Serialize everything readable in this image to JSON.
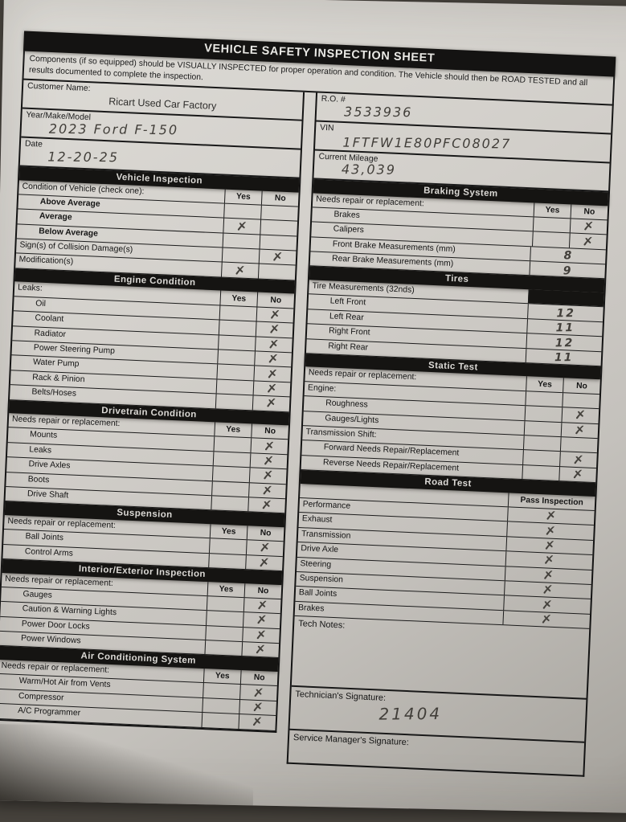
{
  "colors": {
    "ink": "#1a1a1a",
    "paper": "#d2cfca",
    "handwriting": "#45423e",
    "background": "#46423c"
  },
  "header": {
    "title": "VEHICLE SAFETY INSPECTION SHEET",
    "note": "Components (if so equipped) should be VISUALLY INSPECTED for proper operation and condition. The Vehicle should then be ROAD TESTED and all results documented to complete the inspection."
  },
  "fields": {
    "left": [
      {
        "label": "Customer Name:",
        "value": "Ricart Used Car Factory"
      },
      {
        "label": "Year/Make/Model",
        "value": "2023  Ford  F-150"
      },
      {
        "label": "Date",
        "value": "12-20-25"
      }
    ],
    "right": [
      {
        "label": "R.O. #",
        "value": "3533936"
      },
      {
        "label": "VIN",
        "value": "1FTFW1E80PFC08027"
      },
      {
        "label": "Current Mileage",
        "value": "43,039"
      }
    ]
  },
  "left_column": {
    "sections": [
      {
        "title": "Vehicle Inspection",
        "subheader": "Condition of Vehicle (check one):",
        "cols": [
          "Yes",
          "No"
        ],
        "rows": [
          {
            "label": "Above Average",
            "indent": 1,
            "bold": true,
            "cells": [
              "",
              ""
            ]
          },
          {
            "label": "Average",
            "indent": 1,
            "bold": true,
            "cells": [
              "✗",
              ""
            ]
          },
          {
            "label": "Below Average",
            "indent": 1,
            "bold": true,
            "cells": [
              "",
              ""
            ]
          },
          {
            "label": "Sign(s) of Collision Damage(s)",
            "cells": [
              "",
              "✗"
            ]
          },
          {
            "label": "Modification(s)",
            "cells": [
              "✗",
              ""
            ]
          }
        ]
      },
      {
        "title": "Engine Condition",
        "subheader": "Leaks:",
        "cols": [
          "Yes",
          "No"
        ],
        "rows": [
          {
            "label": "Oil",
            "indent": 1,
            "cells": [
              "",
              "✗"
            ]
          },
          {
            "label": "Coolant",
            "indent": 1,
            "cells": [
              "",
              "✗"
            ]
          },
          {
            "label": "Radiator",
            "indent": 1,
            "cells": [
              "",
              "✗"
            ]
          },
          {
            "label": "Power Steering Pump",
            "indent": 1,
            "cells": [
              "",
              "✗"
            ]
          },
          {
            "label": "Water Pump",
            "indent": 1,
            "cells": [
              "",
              "✗"
            ]
          },
          {
            "label": "Rack & Pinion",
            "indent": 1,
            "cells": [
              "",
              "✗"
            ]
          },
          {
            "label": "Belts/Hoses",
            "indent": 1,
            "cells": [
              "",
              "✗"
            ]
          }
        ]
      },
      {
        "title": "Drivetrain Condition",
        "subheader": "Needs repair or replacement:",
        "cols": [
          "Yes",
          "No"
        ],
        "rows": [
          {
            "label": "Mounts",
            "indent": 1,
            "cells": [
              "",
              "✗"
            ]
          },
          {
            "label": "Leaks",
            "indent": 1,
            "cells": [
              "",
              "✗"
            ]
          },
          {
            "label": "Drive Axles",
            "indent": 1,
            "cells": [
              "",
              "✗"
            ]
          },
          {
            "label": "Boots",
            "indent": 1,
            "cells": [
              "",
              "✗"
            ]
          },
          {
            "label": "Drive Shaft",
            "indent": 1,
            "cells": [
              "",
              "✗"
            ]
          }
        ]
      },
      {
        "title": "Suspension",
        "subheader": "Needs repair or replacement:",
        "cols": [
          "Yes",
          "No"
        ],
        "rows": [
          {
            "label": "Ball Joints",
            "indent": 1,
            "cells": [
              "",
              "✗"
            ]
          },
          {
            "label": "Control Arms",
            "indent": 1,
            "cells": [
              "",
              "✗"
            ]
          }
        ]
      },
      {
        "title": "Interior/Exterior Inspection",
        "subheader": "Needs repair or replacement:",
        "cols": [
          "Yes",
          "No"
        ],
        "rows": [
          {
            "label": "Gauges",
            "indent": 1,
            "cells": [
              "",
              "✗"
            ]
          },
          {
            "label": "Caution & Warning Lights",
            "indent": 1,
            "cells": [
              "",
              "✗"
            ]
          },
          {
            "label": "Power Door Locks",
            "indent": 1,
            "cells": [
              "",
              "✗"
            ]
          },
          {
            "label": "Power Windows",
            "indent": 1,
            "cells": [
              "",
              "✗"
            ]
          }
        ]
      },
      {
        "title": "Air Conditioning System",
        "subheader": "Needs repair or replacement:",
        "cols": [
          "Yes",
          "No"
        ],
        "rows": [
          {
            "label": "Warm/Hot Air from Vents",
            "indent": 1,
            "cells": [
              "",
              "✗"
            ]
          },
          {
            "label": "Compressor",
            "indent": 1,
            "cells": [
              "",
              "✗"
            ]
          },
          {
            "label": "A/C Programmer",
            "indent": 1,
            "cells": [
              "",
              "✗"
            ]
          }
        ]
      }
    ]
  },
  "right_column": {
    "sections": [
      {
        "title": "Braking System",
        "subheader": "Needs repair or replacement:",
        "cols": [
          "Yes",
          "No"
        ],
        "rows": [
          {
            "label": "Brakes",
            "indent": 1,
            "cells": [
              "",
              "✗"
            ]
          },
          {
            "label": "Calipers",
            "indent": 1,
            "cells": [
              "",
              "✗"
            ]
          },
          {
            "label": "Front Brake Measurements (mm)",
            "indent": 1,
            "span": 2,
            "cells": [
              "8"
            ]
          },
          {
            "label": "Rear Brake Measurements (mm)",
            "indent": 1,
            "span": 2,
            "cells": [
              "9"
            ]
          }
        ]
      },
      {
        "title": "Tires",
        "subheader": "Tire Measurements (32nds)",
        "cols": null,
        "rows": [
          {
            "label": "Left Front",
            "indent": 1,
            "span": 2,
            "cells": [
              "12"
            ]
          },
          {
            "label": "Left Rear",
            "indent": 1,
            "span": 2,
            "cells": [
              "11"
            ]
          },
          {
            "label": "Right Front",
            "indent": 1,
            "span": 2,
            "cells": [
              "12"
            ]
          },
          {
            "label": "Right Rear",
            "indent": 1,
            "span": 2,
            "cells": [
              "11"
            ]
          }
        ]
      },
      {
        "title": "Static Test",
        "subheader": "Needs repair or replacement:",
        "cols": [
          "Yes",
          "No"
        ],
        "rows": [
          {
            "label": "Engine:",
            "header": true,
            "cells": [
              "",
              ""
            ]
          },
          {
            "label": "Roughness",
            "indent": 1,
            "cells": [
              "",
              "✗"
            ]
          },
          {
            "label": "Gauges/Lights",
            "indent": 1,
            "cells": [
              "",
              "✗"
            ]
          },
          {
            "label": "Transmission Shift:",
            "header": true,
            "cells": [
              "",
              ""
            ]
          },
          {
            "label": "Forward Needs Repair/Replacement",
            "indent": 1,
            "cells": [
              "",
              "✗"
            ]
          },
          {
            "label": "Reverse Needs Repair/Replacement",
            "indent": 1,
            "cells": [
              "",
              "✗"
            ]
          }
        ]
      },
      {
        "title": "Road Test",
        "subheader": "",
        "cols": [
          "Pass Inspection"
        ],
        "rows": [
          {
            "label": "Performance",
            "cells": [
              "✗"
            ]
          },
          {
            "label": "Exhaust",
            "cells": [
              "✗"
            ]
          },
          {
            "label": "Transmission",
            "cells": [
              "✗"
            ]
          },
          {
            "label": "Drive Axle",
            "cells": [
              "✗"
            ]
          },
          {
            "label": "Steering",
            "cells": [
              "✗"
            ]
          },
          {
            "label": "Suspension",
            "cells": [
              "✗"
            ]
          },
          {
            "label": "Ball Joints",
            "cells": [
              "✗"
            ]
          },
          {
            "label": "Brakes",
            "cells": [
              "✗"
            ]
          }
        ]
      }
    ],
    "tech_notes_label": "Tech Notes:",
    "technician_label": "Technician's Signature:",
    "technician_value": "21404",
    "service_manager_label": "Service Manager's Signature:",
    "service_manager_value": ""
  }
}
